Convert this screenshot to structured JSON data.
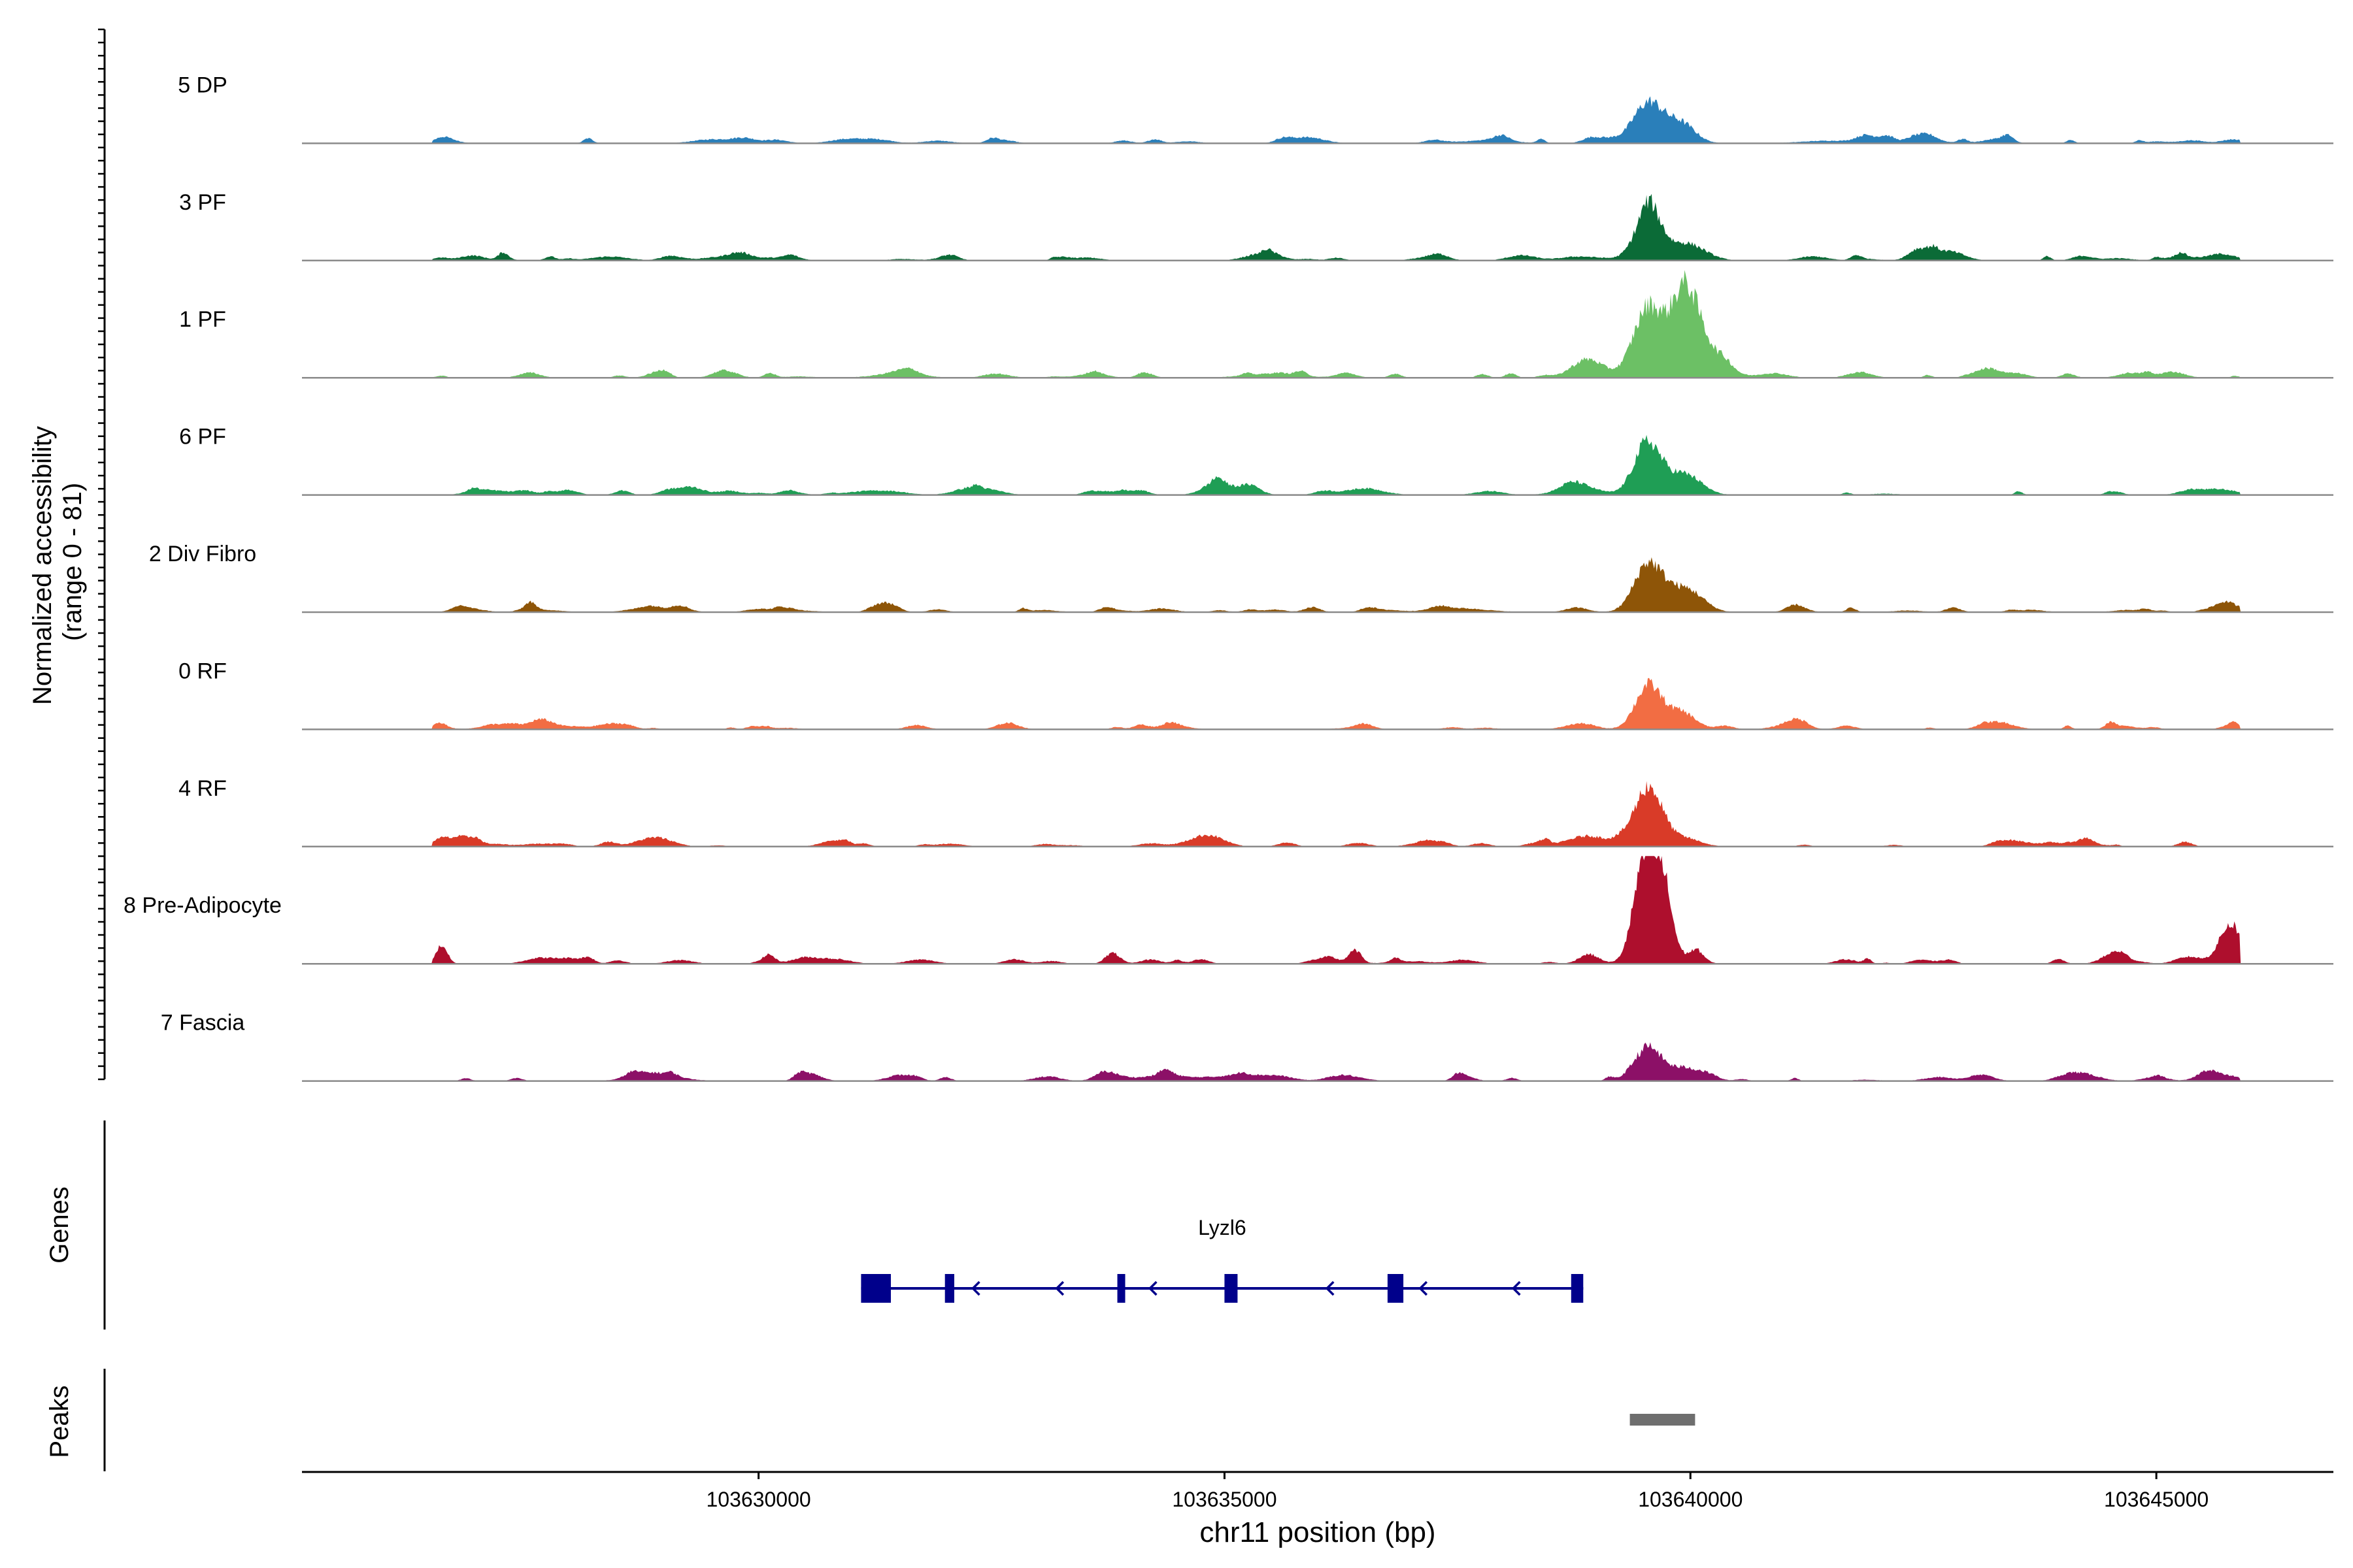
{
  "chart_data": {
    "type": "area",
    "title": "",
    "chromosome": "chr11",
    "xlabel": "chr11 position (bp)",
    "ylabel_line1": "Normalized accessibility",
    "ylabel_line2": "(range 0 - 81)",
    "y_range": [
      0,
      81
    ],
    "xlim": [
      103625100,
      103646900
    ],
    "x_ticks": [
      103630000,
      103635000,
      103640000,
      103645000
    ],
    "x_tick_labels": [
      "103630000",
      "103635000",
      "103640000",
      "103645000"
    ],
    "tracks": [
      {
        "name": "5 DP",
        "color": "#2a7fba",
        "peaks": [
          [
            103639550,
            30,
            150
          ],
          [
            103639900,
            15,
            150
          ],
          [
            103629500,
            3,
            200
          ],
          [
            103637800,
            2,
            300
          ],
          [
            103641500,
            2,
            300
          ]
        ]
      },
      {
        "name": "3 PF",
        "color": "#0b6b37",
        "peaks": [
          [
            103639550,
            40,
            130
          ],
          [
            103639950,
            13,
            200
          ],
          [
            103628400,
            3,
            200
          ],
          [
            103642800,
            6,
            150
          ],
          [
            103645700,
            5,
            150
          ],
          [
            103638800,
            3,
            200
          ]
        ]
      },
      {
        "name": "1 PF",
        "color": "#6cc065",
        "peaks": [
          [
            103638900,
            14,
            170
          ],
          [
            103639550,
            53,
            160
          ],
          [
            103639950,
            63,
            150
          ],
          [
            103640250,
            15,
            170
          ],
          [
            103631500,
            3,
            250
          ],
          [
            103635500,
            3,
            300
          ]
        ]
      },
      {
        "name": "6 PF",
        "color": "#1f9e55",
        "peaks": [
          [
            103634900,
            8,
            140
          ],
          [
            103638800,
            7,
            200
          ],
          [
            103639550,
            34,
            140
          ],
          [
            103639950,
            15,
            170
          ],
          [
            103636500,
            5,
            200
          ],
          [
            103631200,
            3,
            250
          ]
        ]
      },
      {
        "name": "2 Div Fibro",
        "color": "#8e5508",
        "peaks": [
          [
            103639550,
            37,
            150
          ],
          [
            103639950,
            17,
            170
          ],
          [
            103628800,
            3,
            200
          ],
          [
            103637500,
            3,
            300
          ],
          [
            103645800,
            4,
            150
          ]
        ]
      },
      {
        "name": "0 RF",
        "color": "#f26d43",
        "peaks": [
          [
            103639550,
            33,
            140
          ],
          [
            103639900,
            13,
            150
          ],
          [
            103638800,
            4,
            150
          ],
          [
            103645800,
            3,
            100
          ]
        ]
      },
      {
        "name": "4 RF",
        "color": "#d93b28",
        "peaks": [
          [
            103639550,
            45,
            150
          ],
          [
            103638900,
            8,
            220
          ],
          [
            103639950,
            6,
            160
          ],
          [
            103628800,
            5,
            150
          ],
          [
            103634800,
            5,
            180
          ]
        ]
      },
      {
        "name": "8 Pre-Adipocyte",
        "color": "#ae0f2d",
        "peaks": [
          [
            103639500,
            75,
            110
          ],
          [
            103639700,
            60,
            100
          ],
          [
            103626600,
            14,
            60
          ],
          [
            103633800,
            8,
            80
          ],
          [
            103636400,
            10,
            70
          ],
          [
            103645800,
            30,
            120
          ],
          [
            103644600,
            8,
            100
          ],
          [
            103638900,
            6,
            100
          ]
        ]
      },
      {
        "name": "7 Fascia",
        "color": "#8c1067",
        "peaks": [
          [
            103639550,
            25,
            140
          ],
          [
            103639950,
            9,
            170
          ],
          [
            103628900,
            5,
            250
          ],
          [
            103635200,
            5,
            300
          ],
          [
            103633800,
            4,
            150
          ],
          [
            103645600,
            3,
            150
          ]
        ]
      }
    ],
    "genes_label": "Genes",
    "peaks_label": "Peaks",
    "gene": {
      "name": "Lyzl6",
      "strand": "-",
      "color": "#00008b",
      "start": 103631100,
      "end": 103638850,
      "exons": [
        [
          103631100,
          103631420
        ],
        [
          103632000,
          103632100
        ],
        [
          103633850,
          103633920
        ],
        [
          103635000,
          103635140
        ],
        [
          103636750,
          103636920
        ],
        [
          103638720,
          103638850
        ]
      ]
    },
    "peak_regions": [
      {
        "start": 103639350,
        "end": 103640050,
        "color": "#6e6e6e"
      }
    ]
  }
}
